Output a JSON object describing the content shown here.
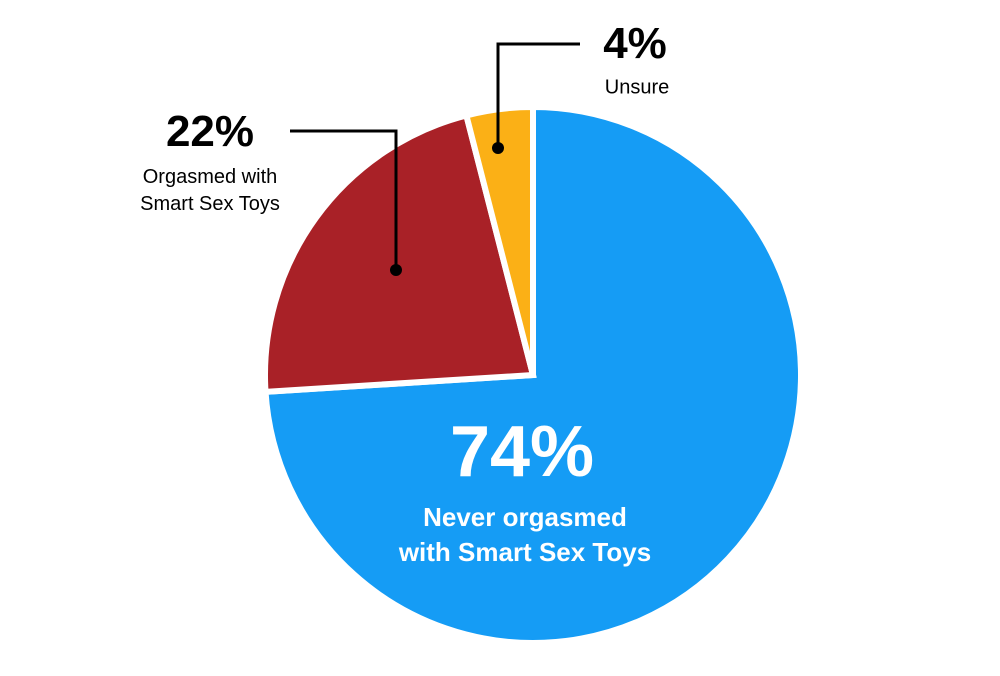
{
  "chart_data": {
    "type": "pie",
    "categories": [
      "Never orgasmed\nwith Smart Sex Toys",
      "Orgasmed with\nSmart Sex Toys",
      "Unsure"
    ],
    "values": [
      74,
      22,
      4
    ],
    "value_labels": [
      "74%",
      "22%",
      "4%"
    ],
    "colors": [
      "#159cf5",
      "#a92127",
      "#fbb016"
    ]
  }
}
